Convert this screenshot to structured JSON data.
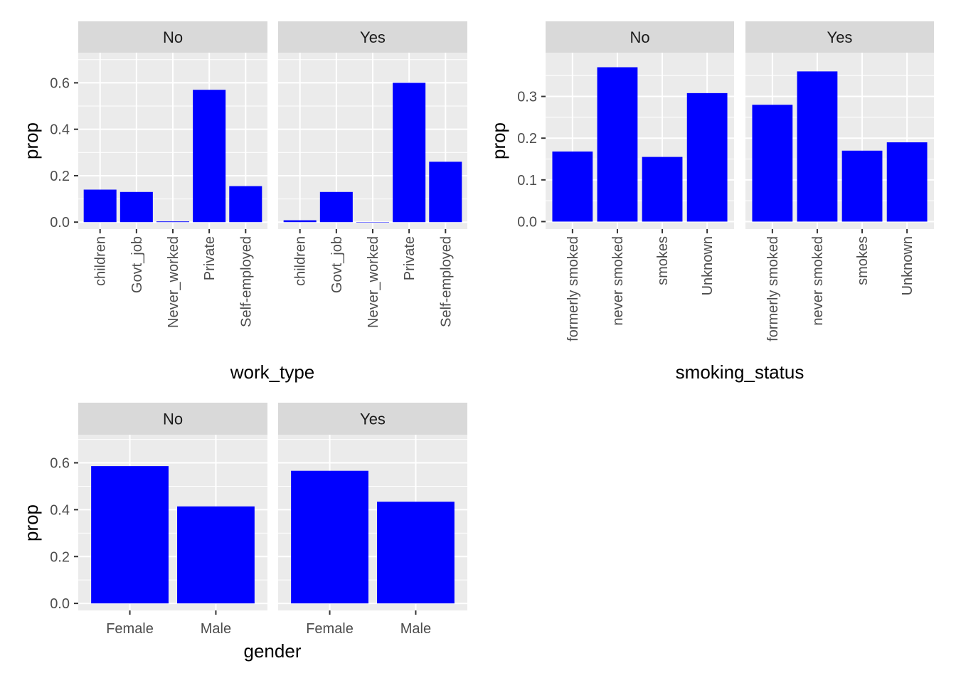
{
  "figure": {
    "bar_color": "#0000FF",
    "panel_bg": "#EBEBEB",
    "strip_bg": "#D9D9D9",
    "grid_color": "#FFFFFF"
  },
  "chart_data": [
    {
      "type": "bar",
      "facet_by": [
        "No",
        "Yes"
      ],
      "xlabel": "work_type",
      "ylabel": "prop",
      "categories": [
        "children",
        "Govt_job",
        "Never_worked",
        "Private",
        "Self-employed"
      ],
      "series": [
        {
          "name": "No",
          "values": [
            0.14,
            0.13,
            0.003,
            0.57,
            0.155
          ]
        },
        {
          "name": "Yes",
          "values": [
            0.008,
            0.13,
            0.0,
            0.6,
            0.26
          ]
        }
      ],
      "ylim": [
        -0.03,
        0.73
      ],
      "yticks": [
        0.0,
        0.2,
        0.4,
        0.6
      ],
      "ytick_labels": [
        "0.0",
        "0.2",
        "0.4",
        "0.6"
      ],
      "grid": true
    },
    {
      "type": "bar",
      "facet_by": [
        "No",
        "Yes"
      ],
      "xlabel": "smoking_status",
      "ylabel": "prop",
      "categories": [
        "formerly smoked",
        "never smoked",
        "smokes",
        "Unknown"
      ],
      "series": [
        {
          "name": "No",
          "values": [
            0.168,
            0.37,
            0.155,
            0.308
          ]
        },
        {
          "name": "Yes",
          "values": [
            0.28,
            0.36,
            0.17,
            0.19
          ]
        }
      ],
      "ylim": [
        -0.018,
        0.405
      ],
      "yticks": [
        0.0,
        0.1,
        0.2,
        0.3
      ],
      "ytick_labels": [
        "0.0",
        "0.1",
        "0.2",
        "0.3"
      ],
      "grid": true
    },
    {
      "type": "bar",
      "facet_by": [
        "No",
        "Yes"
      ],
      "xlabel": "gender",
      "ylabel": "prop",
      "categories": [
        "Female",
        "Male"
      ],
      "series": [
        {
          "name": "No",
          "values": [
            0.586,
            0.414
          ]
        },
        {
          "name": "Yes",
          "values": [
            0.566,
            0.434
          ]
        }
      ],
      "ylim": [
        -0.03,
        0.72
      ],
      "yticks": [
        0.0,
        0.2,
        0.4,
        0.6
      ],
      "ytick_labels": [
        "0.0",
        "0.2",
        "0.4",
        "0.6"
      ],
      "grid": true
    }
  ]
}
